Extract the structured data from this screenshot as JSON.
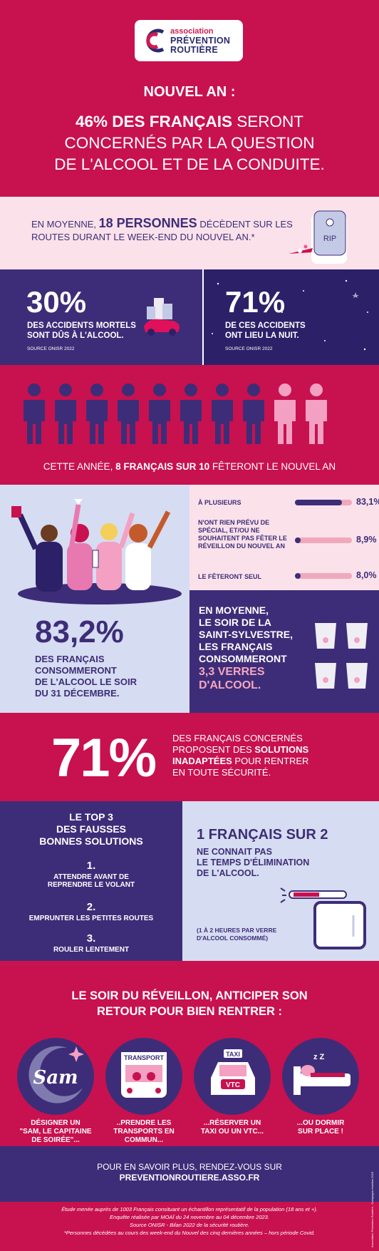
{
  "brand": {
    "line1": "association",
    "line2": "PRÉVENTION",
    "line3": "ROUTIÈRE",
    "colors": {
      "red": "#c8114f",
      "navy": "#3d2d78",
      "pink": "#fbe1ea",
      "lilac": "#d6dcf1"
    }
  },
  "header": {
    "subtitle": "NOUVEL AN :",
    "title_bold": "46% DES FRANÇAIS",
    "title_rest": "SERONT",
    "title_line2": "CONCERNÉS PAR LA QUESTION",
    "title_line3": "DE L'ALCOOL ET DE LA CONDUITE."
  },
  "deaths": {
    "prefix": "EN MOYENNE,",
    "highlight": "18 PERSONNES",
    "rest": "DÉCÈDENT SUR LES ROUTES DURANT LE WEEK-END DU NOUVEL AN.*",
    "tomb_text": "RIP"
  },
  "stats": {
    "left": {
      "value": "30%",
      "line1": "DES ACCIDENTS MORTELS",
      "line2": "SONT DÛS À L'ALCOOL.",
      "source": "SOURCE ONISR 2022"
    },
    "right": {
      "value": "71%",
      "line1": "DE CES ACCIDENTS",
      "line2": "ONT LIEU LA NUIT.",
      "source": "SOURCE ONISR 2022"
    }
  },
  "people": {
    "celebrating": 8,
    "total": 10,
    "caption_pre": "CETTE ANNÉE,",
    "caption_bold": "8 FRANÇAIS SUR 10",
    "caption_post": "FÊTERONT LE NOUVEL AN"
  },
  "celebration": {
    "bars": [
      {
        "label": "À PLUSIEURS",
        "value": "83,1%",
        "fraction": 0.831
      },
      {
        "label": "N'ONT RIEN PRÉVU DE SPÉCIAL, ET/OU NE SOUHAITENT PAS FÊTER LE RÉVEILLON DU NOUVEL AN",
        "value": "8,9%",
        "fraction": 0.089
      },
      {
        "label": "LE FÊTERONT SEUL",
        "value": "8,0%",
        "fraction": 0.08
      }
    ]
  },
  "alcohol": {
    "value": "83,2%",
    "line1": "DES FRANÇAIS",
    "line2": "CONSOMMERONT",
    "line3": "DE L'ALCOOL LE SOIR",
    "line4": "DU 31 DÉCEMBRE."
  },
  "glasses": {
    "line1": "EN MOYENNE,",
    "line2": "LE SOIR DE LA",
    "line3": "SAINT-SYLVESTRE,",
    "line4": "LES FRANÇAIS",
    "line5": "CONSOMMERONT",
    "value1": "3,3 VERRES",
    "value2": "D'ALCOOL."
  },
  "solutions": {
    "value": "71%",
    "line1": "DES FRANÇAIS CONCERNÉS",
    "line2_pre": "PROPOSENT DES",
    "line2_bold": "SOLUTIONS",
    "line3_bold": "INADAPTÉES",
    "line3_post": "POUR RENTRER",
    "line4": "EN TOUTE SÉCURITÉ."
  },
  "top3": {
    "title1": "LE TOP 3",
    "title2": "DES FAUSSES",
    "title3": "BONNES SOLUTIONS",
    "items": [
      {
        "num": "1.",
        "line1": "ATTENDRE AVANT DE",
        "line2": "REPRENDRE LE VOLANT"
      },
      {
        "num": "2.",
        "line1": "EMPRUNTER LES PETITES ROUTES",
        "line2": ""
      },
      {
        "num": "3.",
        "line1": "ROULER LENTEMENT",
        "line2": ""
      }
    ]
  },
  "elimination": {
    "headline": "1 FRANÇAIS SUR 2",
    "line1": "NE CONNAIT PAS",
    "line2": "LE TEMPS D'ÉLIMINATION",
    "line3": "DE L'ALCOOL.",
    "note1": "(1 À 2 HEURES PAR VERRE",
    "note2": "D'ALCOOL CONSOMMÉ)"
  },
  "reveillon": {
    "title1": "LE SOIR DU RÉVEILLON, ANTICIPER SON",
    "title2": "RETOUR POUR BIEN RENTRER :",
    "options": [
      {
        "icon": "sam-icon",
        "tag": "Sam",
        "line1": "DÉSIGNER UN",
        "line2": "\"SAM, LE CAPITAINE",
        "line3": "DE SOIRÉE\"..."
      },
      {
        "icon": "bus-icon",
        "tag": "TRANSPORT",
        "line1": "..PRENDRE LES",
        "line2": "TRANSPORTS EN",
        "line3": "COMMUN..."
      },
      {
        "icon": "taxi-icon",
        "tag": "TAXI",
        "tag2": "VTC",
        "line1": "...RÉSERVER UN",
        "line2": "TAXI OU UN VTC...",
        "line3": ""
      },
      {
        "icon": "sleep-icon",
        "tag": "",
        "line1": "...OU DORMIR",
        "line2": "SUR PLACE !",
        "line3": ""
      }
    ]
  },
  "more": {
    "line1": "POUR EN SAVOIR PLUS, RENDEZ-VOUS SUR",
    "url": "PREVENTIONROUTIERE.ASSO.FR"
  },
  "footnote": {
    "line1": "Étude menée auprès de 1003 Français consituant un échantillon représentatif de la population (18 ans et +).",
    "line2": "Enquête réalisée par MOAÏ du 24 novembre au 04 décembre 2023.",
    "line3": "Source ONISR - Bilan 2022 de la sécurité routière.",
    "line4": "*Personnes décédées au cours des week-end du Nouvel des cinq dernières années – hors période Covid.",
    "side": "Association Prévention Routière - Campagne réveillon 2023"
  }
}
